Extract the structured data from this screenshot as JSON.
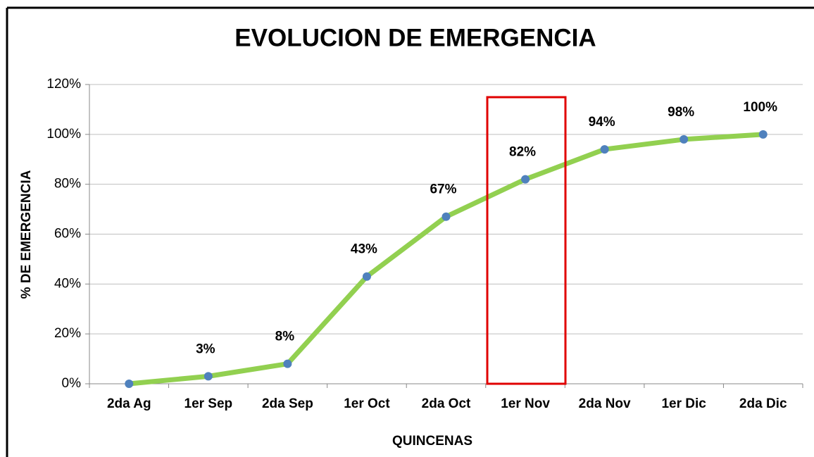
{
  "chart_data": {
    "type": "line",
    "title": "EVOLUCION DE EMERGENCIA",
    "x_label": "QUINCENAS",
    "y_label": "% DE EMERGENCIA",
    "categories": [
      "2da  Ag",
      "1er Sep",
      "2da  Sep",
      "1er Oct",
      "2da Oct",
      "1er Nov",
      "2da  Nov",
      "1er Dic",
      "2da  Dic"
    ],
    "series": [
      {
        "name": "% DE EMERGENCIA",
        "color": "#92d050",
        "marker_color": "#4f81bd",
        "values": [
          0,
          3,
          8,
          43,
          67,
          82,
          94,
          98,
          100
        ],
        "value_labels": [
          null,
          "3%",
          "8%",
          "43%",
          "67%",
          "82%",
          "94%",
          "98%",
          "100%"
        ]
      }
    ],
    "ylim": [
      0,
      120
    ],
    "yticks": [
      {
        "value": 0,
        "label": "0%"
      },
      {
        "value": 20,
        "label": "20%"
      },
      {
        "value": 40,
        "label": "40%"
      },
      {
        "value": 60,
        "label": "60%"
      },
      {
        "value": 80,
        "label": "80%"
      },
      {
        "value": 100,
        "label": "100%"
      },
      {
        "value": 120,
        "label": "120%"
      }
    ],
    "grid": true
  }
}
